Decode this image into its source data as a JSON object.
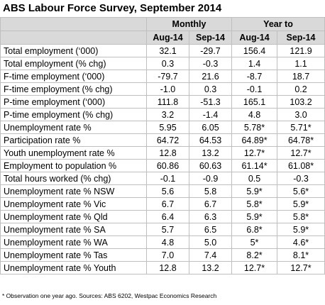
{
  "title": "ABS Labour Force Survey, September 2014",
  "header": {
    "groups": [
      "Monthly",
      "Year to"
    ],
    "columns": [
      "Aug-14",
      "Sep-14",
      "Aug-14",
      "Sep-14"
    ]
  },
  "rows": [
    {
      "label": "Total employment (‘000)",
      "values": [
        "32.1",
        "-29.7",
        "156.4",
        "121.9"
      ]
    },
    {
      "label": "Total employment (% chg)",
      "values": [
        "0.3",
        "-0.3",
        "1.4",
        "1.1"
      ]
    },
    {
      "label": "F-time employment (‘000)",
      "values": [
        "-79.7",
        "21.6",
        "-8.7",
        "18.7"
      ]
    },
    {
      "label": "F-time employment (% chg)",
      "values": [
        "-1.0",
        "0.3",
        "-0.1",
        "0.2"
      ]
    },
    {
      "label": "P-time employment (‘000)",
      "values": [
        "111.8",
        "-51.3",
        "165.1",
        "103.2"
      ]
    },
    {
      "label": "P-time employment (% chg)",
      "values": [
        "3.2",
        "-1.4",
        "4.8",
        "3.0"
      ]
    },
    {
      "label": "Unemployment rate %",
      "values": [
        "5.95",
        "6.05",
        "5.78*",
        "5.71*"
      ]
    },
    {
      "label": "Participation rate %",
      "values": [
        "64.72",
        "64.53",
        "64.89*",
        "64.78*"
      ]
    },
    {
      "label": "Youth unemployment rate %",
      "values": [
        "12.8",
        "13.2",
        "12.7*",
        "12.7*"
      ]
    },
    {
      "label": "Employment to population %",
      "values": [
        "60.86",
        "60.63",
        "61.14*",
        "61.08*"
      ]
    },
    {
      "label": "Total hours worked (% chg)",
      "values": [
        "-0.1",
        "-0.9",
        "0.5",
        "-0.3"
      ]
    },
    {
      "label": "Unemployment rate % NSW",
      "values": [
        "5.6",
        "5.8",
        "5.9*",
        "5.6*"
      ]
    },
    {
      "label": "Unemployment rate % Vic",
      "values": [
        "6.7",
        "6.7",
        "5.8*",
        "5.9*"
      ]
    },
    {
      "label": "Unemployment rate % Qld",
      "values": [
        "6.4",
        "6.3",
        "5.9*",
        "5.8*"
      ]
    },
    {
      "label": "Unemployment rate % SA",
      "values": [
        "5.7",
        "6.5",
        "6.8*",
        "5.9*"
      ]
    },
    {
      "label": "Unemployment rate % WA",
      "values": [
        "4.8",
        "5.0",
        "5*",
        "4.6*"
      ]
    },
    {
      "label": "Unemployment rate % Tas",
      "values": [
        "7.0",
        "7.4",
        "8.2*",
        "8.1*"
      ]
    },
    {
      "label": "Unemployment rate % Youth",
      "values": [
        "12.8",
        "13.2",
        "12.7*",
        "12.7*"
      ]
    }
  ],
  "footnote": "* Observation one year ago.  Sources: ABS 6202, Westpac Economics Research"
}
